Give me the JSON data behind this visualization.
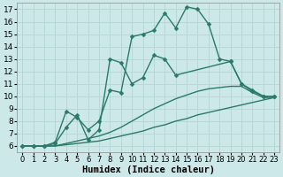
{
  "bg_color": "#cce8e8",
  "grid_color": "#b8d8d8",
  "line_color": "#2a7a6a",
  "line_width": 1.0,
  "marker": "D",
  "marker_size": 2.5,
  "xlabel": "Humidex (Indice chaleur)",
  "xlabel_fontsize": 7.5,
  "ytick_fontsize": 6.5,
  "xtick_fontsize": 6.0,
  "ylim": [
    5.5,
    17.5
  ],
  "xlim": [
    -0.5,
    23.5
  ],
  "yticks": [
    6,
    7,
    8,
    9,
    10,
    11,
    12,
    13,
    14,
    15,
    16,
    17
  ],
  "xticks": [
    0,
    1,
    2,
    3,
    4,
    5,
    6,
    7,
    8,
    9,
    10,
    11,
    12,
    13,
    14,
    15,
    16,
    17,
    18,
    19,
    20,
    21,
    22,
    23
  ],
  "series": [
    {
      "x": [
        0,
        1,
        2,
        3,
        4,
        5,
        6,
        7,
        8,
        9,
        10,
        11,
        12,
        13,
        14,
        15,
        16,
        17,
        18,
        19,
        20,
        21,
        22,
        23
      ],
      "y": [
        6,
        6,
        6,
        6,
        6.1,
        6.2,
        6.3,
        6.4,
        6.6,
        6.8,
        7.0,
        7.2,
        7.5,
        7.7,
        8.0,
        8.2,
        8.5,
        8.7,
        8.9,
        9.1,
        9.3,
        9.5,
        9.7,
        9.9
      ],
      "has_marker": false
    },
    {
      "x": [
        0,
        1,
        2,
        3,
        4,
        5,
        6,
        7,
        8,
        9,
        10,
        11,
        12,
        13,
        14,
        15,
        16,
        17,
        18,
        19,
        20,
        21,
        22,
        23
      ],
      "y": [
        6,
        6,
        6,
        6,
        6.2,
        6.4,
        6.6,
        6.8,
        7.1,
        7.5,
        8.0,
        8.5,
        9.0,
        9.4,
        9.8,
        10.1,
        10.4,
        10.6,
        10.7,
        10.8,
        10.8,
        10.3,
        9.9,
        9.9
      ],
      "has_marker": false
    },
    {
      "x": [
        0,
        1,
        2,
        3,
        4,
        5,
        6,
        7,
        8,
        9,
        10,
        11,
        12,
        13,
        14,
        19,
        20,
        21,
        22,
        23
      ],
      "y": [
        6,
        6,
        6,
        6.2,
        7.5,
        8.5,
        6.5,
        7.3,
        13.0,
        12.7,
        11.0,
        11.5,
        13.3,
        13.0,
        11.7,
        12.8,
        11.0,
        10.5,
        10.0,
        10.0
      ],
      "has_marker": true
    },
    {
      "x": [
        0,
        1,
        2,
        3,
        4,
        5,
        6,
        7,
        8,
        9,
        10,
        11,
        12,
        13,
        14,
        15,
        16,
        17,
        18,
        19,
        20,
        21,
        22,
        23
      ],
      "y": [
        6,
        6,
        6,
        6.3,
        8.8,
        8.3,
        7.3,
        8.0,
        10.5,
        10.3,
        14.8,
        15.0,
        15.3,
        16.7,
        15.5,
        17.2,
        17.0,
        15.8,
        13.0,
        12.8,
        11.0,
        10.4,
        10.0,
        10.0
      ],
      "has_marker": true
    }
  ]
}
